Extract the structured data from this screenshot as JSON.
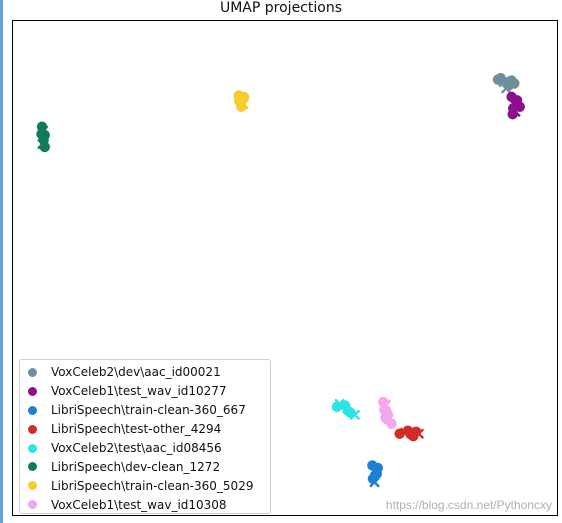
{
  "chart_data": {
    "type": "scatter",
    "title": "UMAP projections",
    "xlabel": "",
    "ylabel": "",
    "grid": false,
    "legend_placement": "lower-left",
    "series": [
      {
        "name": "VoxCeleb2\\dev\\aac_id00021",
        "color": "#708f9c",
        "points": [
          [
            0.89,
            0.88
          ],
          [
            0.9,
            0.875
          ],
          [
            0.91,
            0.868
          ],
          [
            0.92,
            0.872
          ],
          [
            0.905,
            0.862
          ],
          [
            0.915,
            0.878
          ],
          [
            0.895,
            0.883
          ]
        ]
      },
      {
        "name": "VoxCeleb1\\test_wav_id10277",
        "color": "#8e0f8e",
        "points": [
          [
            0.915,
            0.845
          ],
          [
            0.92,
            0.83
          ],
          [
            0.925,
            0.838
          ],
          [
            0.918,
            0.822
          ],
          [
            0.922,
            0.815
          ],
          [
            0.93,
            0.825
          ],
          [
            0.917,
            0.81
          ]
        ]
      },
      {
        "name": "LibriSpeech\\train-clean-360_667",
        "color": "#1e7fd6",
        "points": [
          [
            0.66,
            0.102
          ],
          [
            0.665,
            0.093
          ],
          [
            0.668,
            0.085
          ],
          [
            0.661,
            0.075
          ],
          [
            0.664,
            0.068
          ],
          [
            0.67,
            0.097
          ]
        ]
      },
      {
        "name": "LibriSpeech\\test-other_4294",
        "color": "#d42a2a",
        "points": [
          [
            0.71,
            0.166
          ],
          [
            0.72,
            0.168
          ],
          [
            0.73,
            0.165
          ],
          [
            0.74,
            0.17
          ],
          [
            0.745,
            0.166
          ],
          [
            0.735,
            0.161
          ],
          [
            0.725,
            0.172
          ]
        ]
      },
      {
        "name": "VoxCeleb2\\test\\aac_id08456",
        "color": "#2be5e5",
        "points": [
          [
            0.595,
            0.22
          ],
          [
            0.6,
            0.226
          ],
          [
            0.61,
            0.223
          ],
          [
            0.62,
            0.208
          ],
          [
            0.628,
            0.204
          ],
          [
            0.615,
            0.212
          ]
        ]
      },
      {
        "name": "LibriSpeech\\dev-clean_1272",
        "color": "#127a5c",
        "points": [
          [
            0.055,
            0.785
          ],
          [
            0.057,
            0.777
          ],
          [
            0.06,
            0.768
          ],
          [
            0.058,
            0.758
          ],
          [
            0.056,
            0.75
          ],
          [
            0.06,
            0.744
          ],
          [
            0.054,
            0.77
          ]
        ]
      },
      {
        "name": "LibriSpeech\\train-clean-360_5029",
        "color": "#f6cd2c",
        "points": [
          [
            0.415,
            0.848
          ],
          [
            0.42,
            0.84
          ],
          [
            0.425,
            0.845
          ],
          [
            0.418,
            0.834
          ],
          [
            0.424,
            0.83
          ],
          [
            0.42,
            0.825
          ],
          [
            0.416,
            0.838
          ]
        ]
      },
      {
        "name": "VoxCeleb1\\test_wav_id10308",
        "color": "#f2a7ee",
        "points": [
          [
            0.68,
            0.23
          ],
          [
            0.685,
            0.224
          ],
          [
            0.682,
            0.214
          ],
          [
            0.688,
            0.206
          ],
          [
            0.69,
            0.195
          ],
          [
            0.695,
            0.186
          ],
          [
            0.684,
            0.198
          ]
        ]
      }
    ]
  },
  "watermark": "https://blog.csdn.net/Pythoncxy"
}
